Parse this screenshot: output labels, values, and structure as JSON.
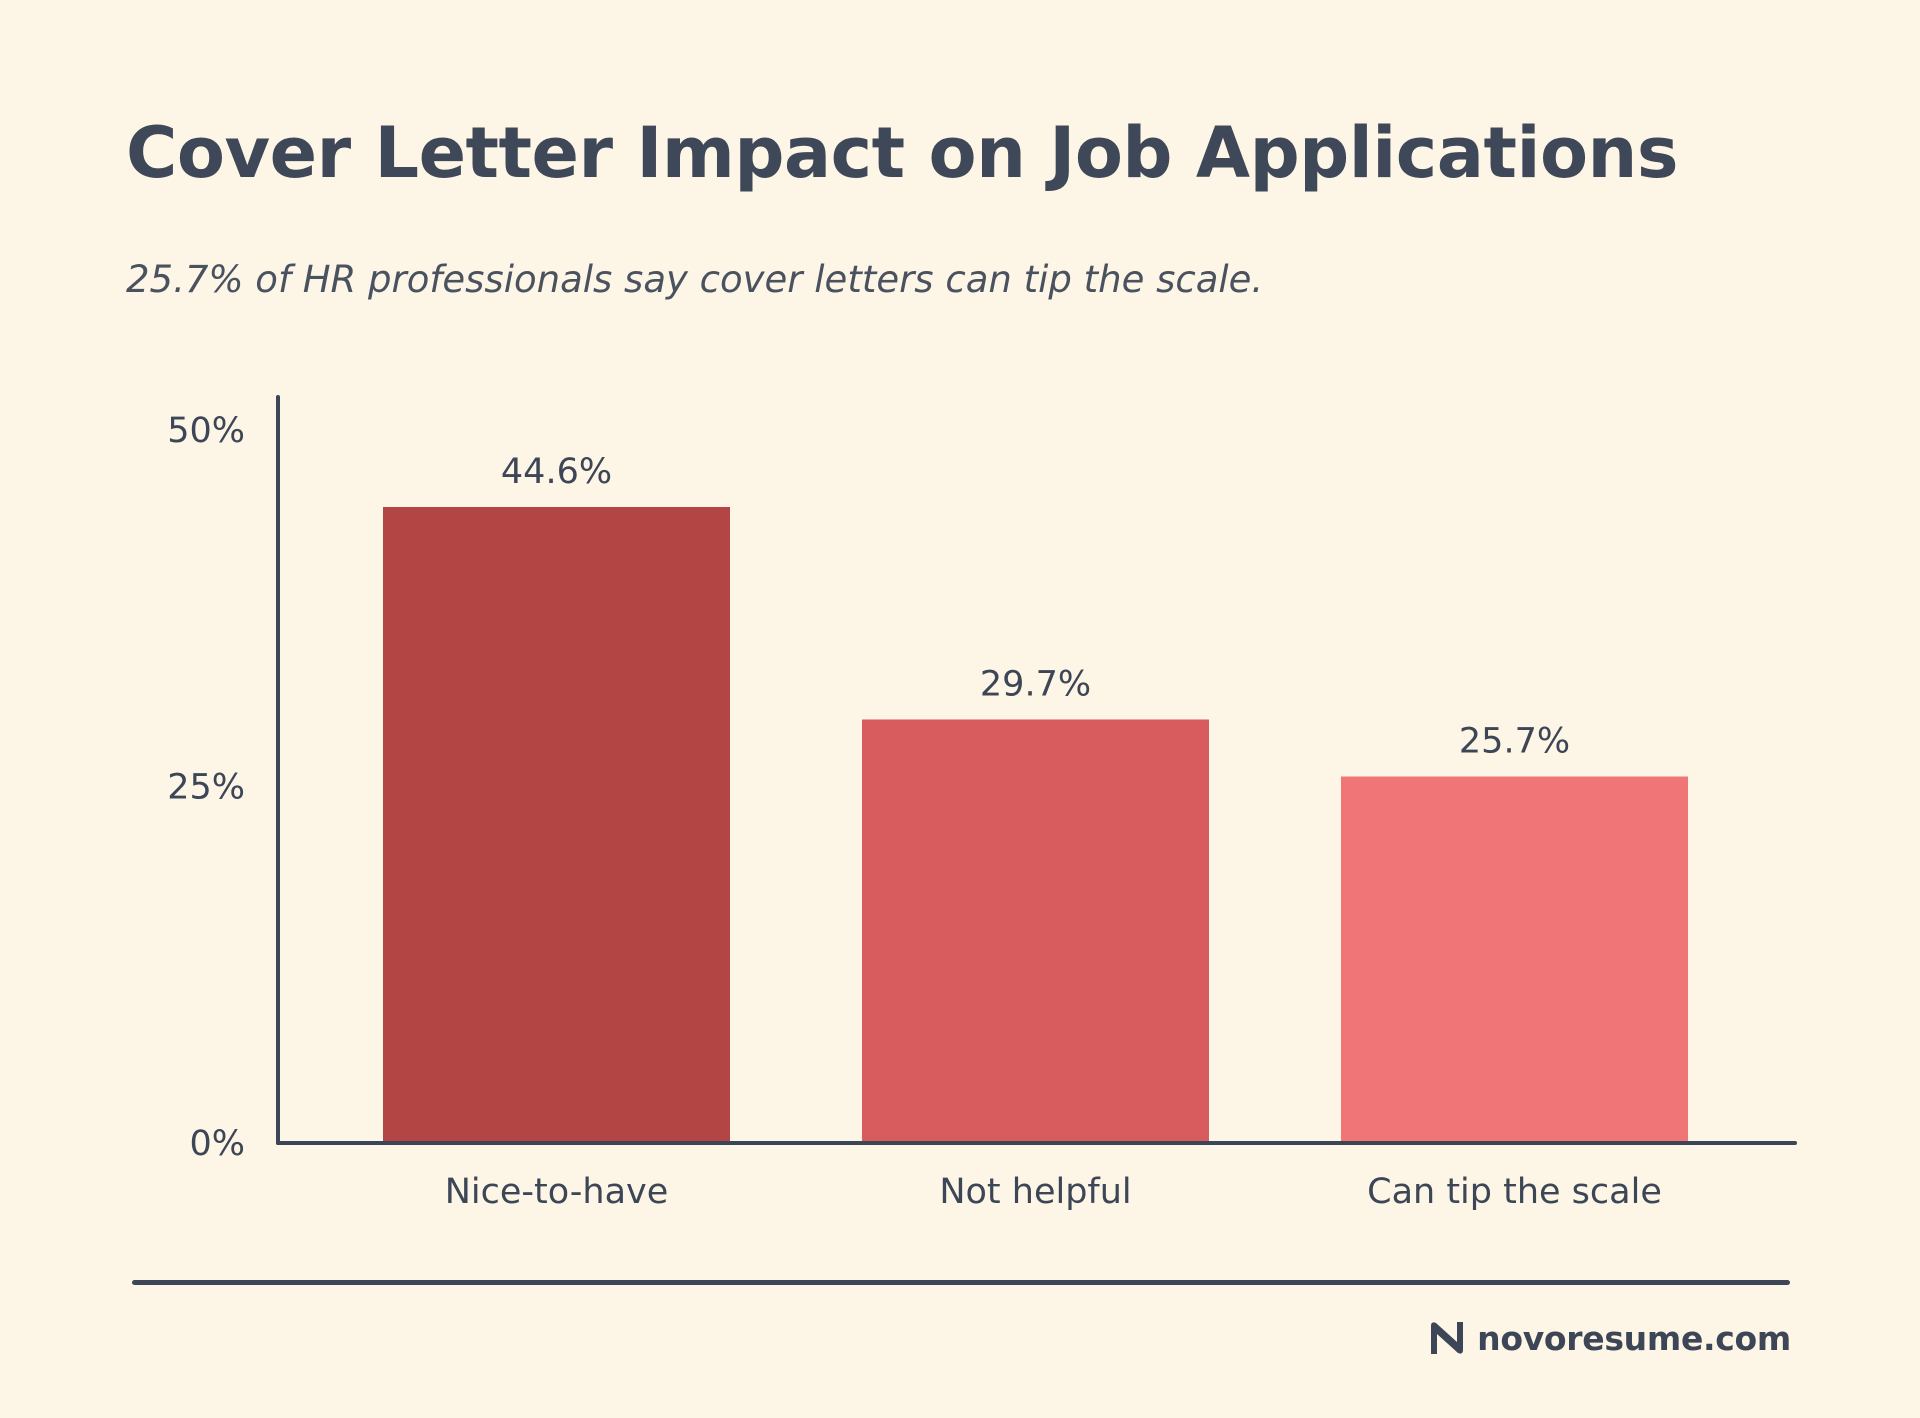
{
  "colors": {
    "background": "#fdf6e6",
    "text": "#3d4656",
    "axis": "#3d4656",
    "bars": [
      "#b44545",
      "#d85c5e",
      "#f07576"
    ]
  },
  "brand": {
    "text": "novoresume.com",
    "icon": "n-logo-icon"
  },
  "chart_data": {
    "type": "bar",
    "title": "Cover Letter Impact on Job Applications",
    "subtitle": "25.7% of HR professionals say cover letters can tip the scale.",
    "categories": [
      "Nice-to-have",
      "Not helpful",
      "Can tip the scale"
    ],
    "values": [
      44.6,
      29.7,
      25.7
    ],
    "data_labels": [
      "44.6%",
      "29.7%",
      "25.7%"
    ],
    "ylim": [
      0,
      50
    ],
    "yticks": [
      0,
      25,
      50
    ],
    "ytick_labels": [
      "0%",
      "25%",
      "50%"
    ],
    "xlabel": "",
    "ylabel": "",
    "grid": false,
    "legend": "none"
  }
}
